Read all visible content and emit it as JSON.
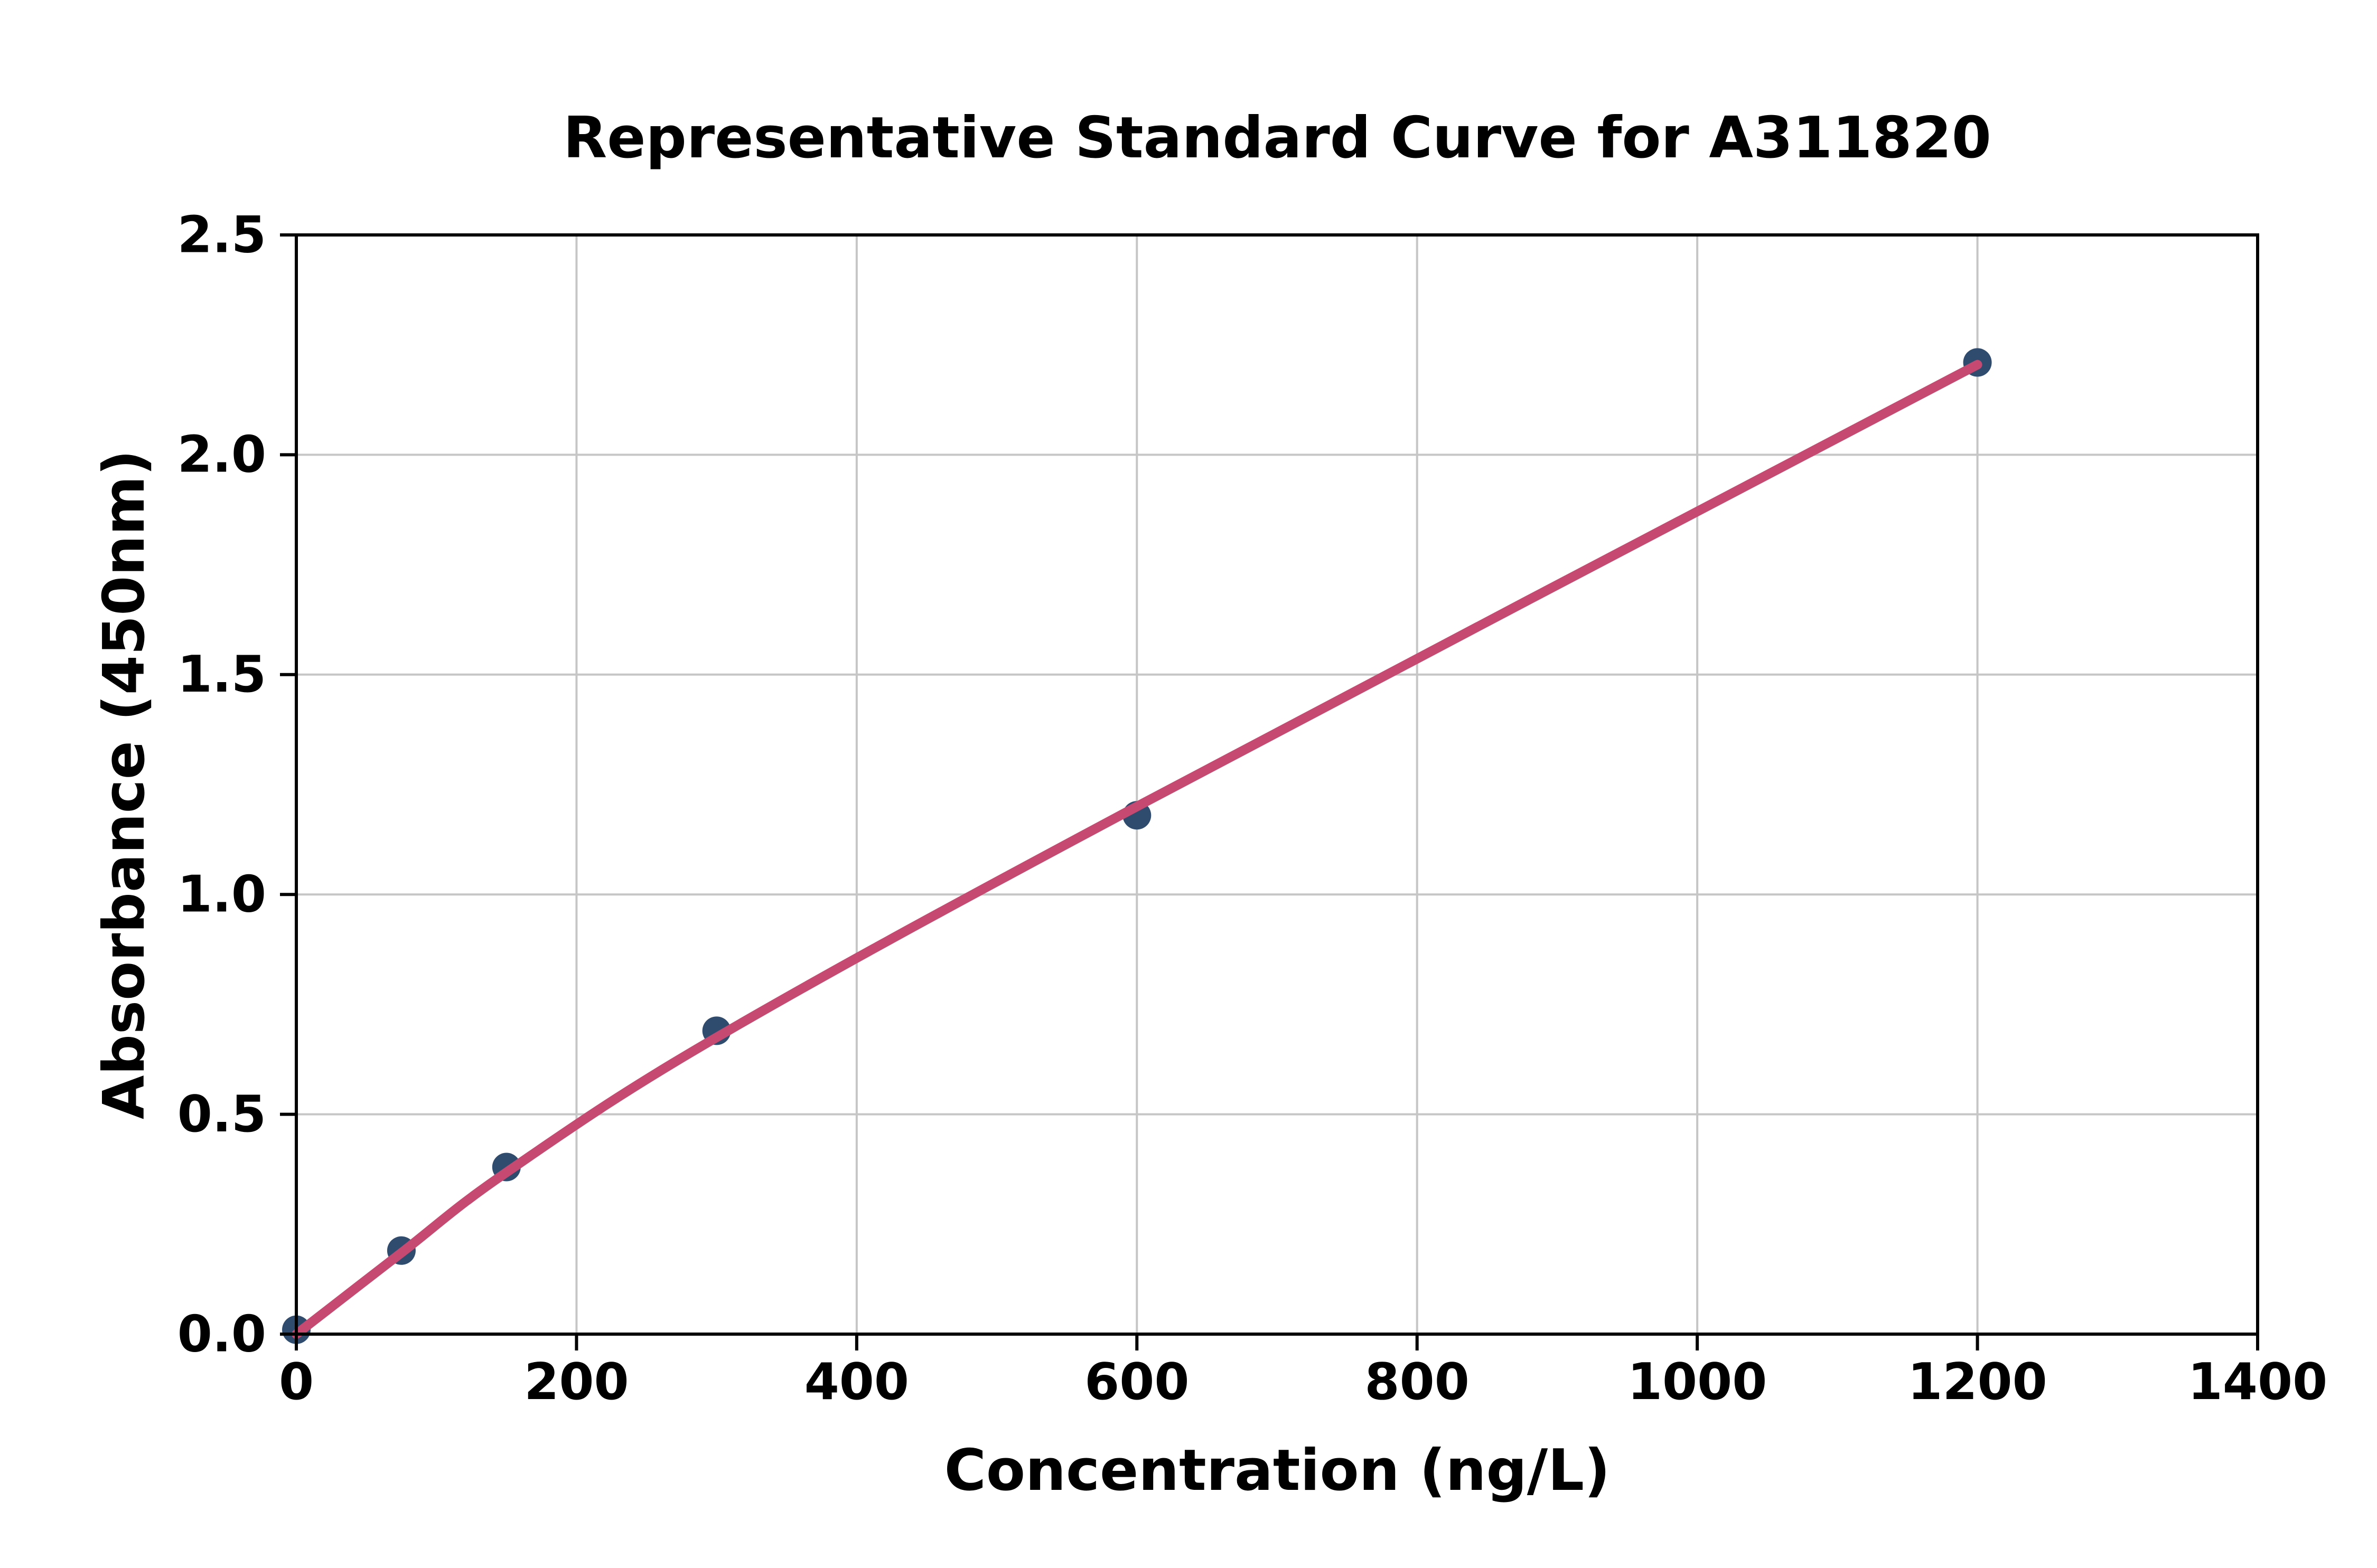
{
  "page": {
    "background": "#FFFFFF"
  },
  "chart_data": {
    "type": "scatter",
    "title": "Representative Standard Curve for A311820",
    "xlabel": "Concentration (ng/L)",
    "ylabel": "Absorbance (450nm)",
    "xlim": [
      0,
      1400
    ],
    "ylim": [
      0.0,
      2.5
    ],
    "grid": true,
    "legend": null,
    "x_ticks": {
      "values": [
        0,
        200,
        400,
        600,
        800,
        1000,
        1200,
        1400
      ],
      "labels": [
        "0",
        "200",
        "400",
        "600",
        "800",
        "1000",
        "1200",
        "1400"
      ]
    },
    "y_ticks": {
      "values": [
        0.0,
        0.5,
        1.0,
        1.5,
        2.0,
        2.5
      ],
      "labels": [
        "0.0",
        "0.5",
        "1.0",
        "1.5",
        "2.0",
        "2.5"
      ]
    },
    "series": [
      {
        "name": "standard-points",
        "type": "scatter",
        "marker": "circle",
        "color": "#2F4B6E",
        "points": [
          {
            "x": 0,
            "y": 0.01
          },
          {
            "x": 75,
            "y": 0.19
          },
          {
            "x": 150,
            "y": 0.38
          },
          {
            "x": 300,
            "y": 0.69
          },
          {
            "x": 600,
            "y": 1.18
          },
          {
            "x": 1200,
            "y": 2.21
          }
        ]
      },
      {
        "name": "fitted-curve",
        "type": "line",
        "color": "#C64971",
        "points": [
          {
            "x": 0,
            "y": 0.0
          },
          {
            "x": 75,
            "y": 0.185
          },
          {
            "x": 150,
            "y": 0.368
          },
          {
            "x": 300,
            "y": 0.675
          },
          {
            "x": 600,
            "y": 1.2
          },
          {
            "x": 1200,
            "y": 2.205
          }
        ]
      }
    ],
    "colors": {
      "axis": "#000000",
      "grid": "#C6C6C6",
      "background": "#FFFFFF",
      "marker": "#2F4B6E",
      "curve": "#C64971"
    }
  }
}
